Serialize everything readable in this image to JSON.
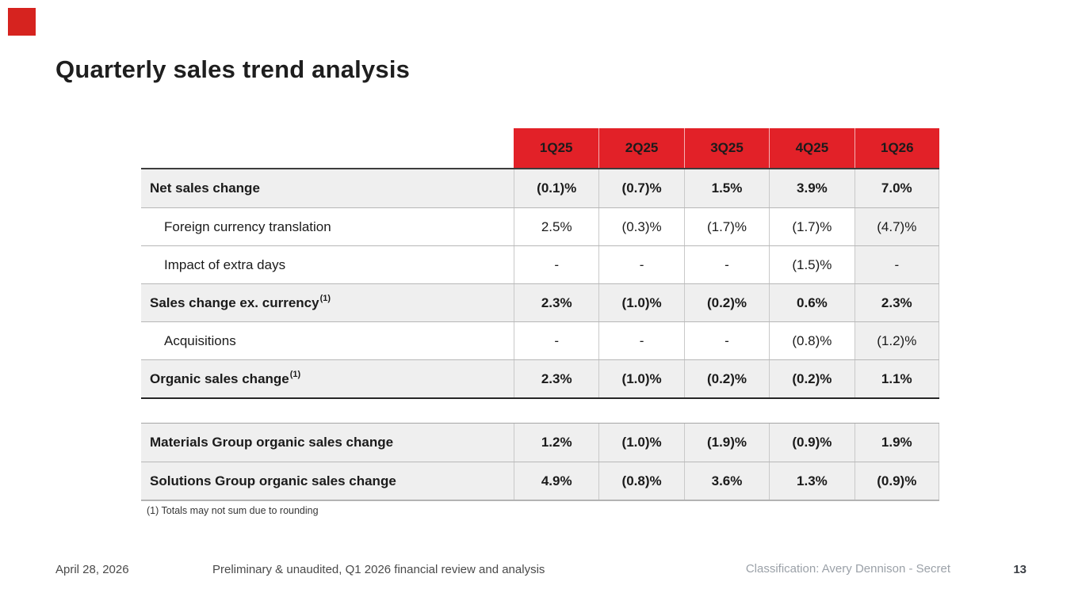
{
  "slide": {
    "title": "Quarterly sales trend analysis",
    "page_number": "13"
  },
  "colors": {
    "header_red": "#e22128",
    "logo_red": "#d6231f",
    "row_gray": "#efefef",
    "highlight_column_gray": "#efefef"
  },
  "logo": {
    "name": "red-square-logo"
  },
  "table1": {
    "columns": [
      "1Q25",
      "2Q25",
      "3Q25",
      "4Q25",
      "1Q26"
    ],
    "rows": [
      {
        "label": "Net sales change",
        "sup": "",
        "values": [
          "(0.1)%",
          "(0.7)%",
          "1.5%",
          "3.9%",
          "7.0%"
        ]
      },
      {
        "label": "Foreign currency translation",
        "sup": "",
        "values": [
          "2.5%",
          "(0.3)%",
          "(1.7)%",
          "(1.7)%",
          "(4.7)%"
        ]
      },
      {
        "label": "Impact of extra days",
        "sup": "",
        "values": [
          "-",
          "-",
          "-",
          "(1.5)%",
          "-"
        ]
      },
      {
        "label": "Sales change ex. currency",
        "sup": "(1)",
        "values": [
          "2.3%",
          "(1.0)%",
          "(0.2)%",
          "0.6%",
          "2.3%"
        ]
      },
      {
        "label": "Acquisitions",
        "sup": "",
        "values": [
          "-",
          "-",
          "-",
          "(0.8)%",
          "(1.2)%"
        ]
      },
      {
        "label": "Organic sales change",
        "sup": "(1)",
        "values": [
          "2.3%",
          "(1.0)%",
          "(0.2)%",
          "(0.2)%",
          "1.1%"
        ]
      }
    ]
  },
  "table2": {
    "rows": [
      {
        "label": "Materials Group organic sales change",
        "values": [
          "1.2%",
          "(1.0)%",
          "(1.9)%",
          "(0.9)%",
          "1.9%"
        ]
      },
      {
        "label": "Solutions Group organic sales change",
        "values": [
          "4.9%",
          "(0.8)%",
          "3.6%",
          "1.3%",
          "(0.9)%"
        ]
      }
    ]
  },
  "footnote": "(1) Totals may not sum due to rounding",
  "footer": {
    "date": "April 28, 2026",
    "center": "Preliminary & unaudited, Q1 2026 financial review and analysis",
    "classification": "Classification: Avery Dennison - Secret",
    "page": "13"
  }
}
